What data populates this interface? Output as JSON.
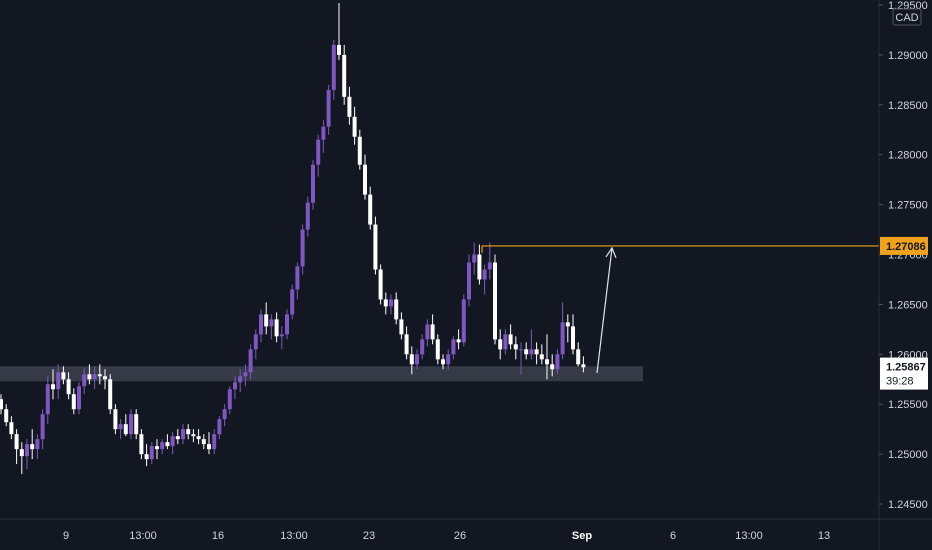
{
  "currency": "CAD",
  "colors": {
    "background": "#131722",
    "up": "#7e57c2",
    "down": "#ffffff",
    "resistance": "#f0a31a",
    "support_zone": "#3a3e4a",
    "axis_text": "#d1d4dc",
    "arrow": "#e0e3eb"
  },
  "price_label_resistance": "1.27086",
  "price_label_current": "1.25867",
  "countdown": "39:28",
  "chart_data": {
    "type": "candlestick",
    "y_ticks": [
      "1.24500",
      "1.25000",
      "1.25500",
      "1.26000",
      "1.26500",
      "1.27000",
      "1.27500",
      "1.28000",
      "1.28500",
      "1.29000",
      "1.29500"
    ],
    "x_ticks": [
      "9",
      "13:00",
      "16",
      "13:00",
      "23",
      "26",
      "Sep",
      "6",
      "13:00",
      "13"
    ],
    "ylim": [
      1.2435,
      1.2955
    ],
    "resistance_level": 1.27086,
    "current_price": 1.25867,
    "support_zone": [
      1.2573,
      1.2588
    ],
    "grid": false,
    "ohlc": [
      [
        1.2555,
        1.256,
        1.254,
        1.2545
      ],
      [
        1.2545,
        1.255,
        1.2528,
        1.2532
      ],
      [
        1.2532,
        1.2538,
        1.2515,
        1.252
      ],
      [
        1.252,
        1.2525,
        1.249,
        1.2505
      ],
      [
        1.2505,
        1.2512,
        1.248,
        1.2498
      ],
      [
        1.2498,
        1.2515,
        1.2485,
        1.251
      ],
      [
        1.251,
        1.2525,
        1.2495,
        1.2505
      ],
      [
        1.2505,
        1.252,
        1.2495,
        1.2515
      ],
      [
        1.2515,
        1.2545,
        1.2505,
        1.254
      ],
      [
        1.254,
        1.2578,
        1.253,
        1.257
      ],
      [
        1.257,
        1.2585,
        1.2555,
        1.2565
      ],
      [
        1.2565,
        1.259,
        1.2555,
        1.2582
      ],
      [
        1.2582,
        1.2588,
        1.257,
        1.2575
      ],
      [
        1.2575,
        1.2582,
        1.2555,
        1.256
      ],
      [
        1.256,
        1.2566,
        1.254,
        1.2545
      ],
      [
        1.2545,
        1.2572,
        1.254,
        1.2568
      ],
      [
        1.2568,
        1.2586,
        1.256,
        1.258
      ],
      [
        1.258,
        1.259,
        1.257,
        1.2575
      ],
      [
        1.2575,
        1.2588,
        1.2565,
        1.258
      ],
      [
        1.258,
        1.259,
        1.257,
        1.2578
      ],
      [
        1.2578,
        1.2585,
        1.2565,
        1.2575
      ],
      [
        1.2575,
        1.258,
        1.254,
        1.2545
      ],
      [
        1.2545,
        1.255,
        1.252,
        1.2525
      ],
      [
        1.2525,
        1.2535,
        1.2515,
        1.253
      ],
      [
        1.253,
        1.254,
        1.2518,
        1.252
      ],
      [
        1.252,
        1.2545,
        1.2515,
        1.254
      ],
      [
        1.254,
        1.2545,
        1.2515,
        1.252
      ],
      [
        1.252,
        1.2525,
        1.2495,
        1.25
      ],
      [
        1.25,
        1.251,
        1.2488,
        1.2495
      ],
      [
        1.2495,
        1.2512,
        1.249,
        1.2508
      ],
      [
        1.2508,
        1.2515,
        1.2495,
        1.2505
      ],
      [
        1.2505,
        1.2515,
        1.25,
        1.2512
      ],
      [
        1.2512,
        1.252,
        1.2505,
        1.2508
      ],
      [
        1.2508,
        1.2522,
        1.25,
        1.2518
      ],
      [
        1.2518,
        1.2525,
        1.251,
        1.2515
      ],
      [
        1.2515,
        1.253,
        1.251,
        1.2525
      ],
      [
        1.2525,
        1.253,
        1.2515,
        1.252
      ],
      [
        1.252,
        1.2525,
        1.2512,
        1.2518
      ],
      [
        1.2518,
        1.2525,
        1.251,
        1.2515
      ],
      [
        1.2515,
        1.252,
        1.2505,
        1.251
      ],
      [
        1.251,
        1.2522,
        1.25,
        1.2505
      ],
      [
        1.2505,
        1.2525,
        1.25,
        1.252
      ],
      [
        1.252,
        1.2538,
        1.2515,
        1.2535
      ],
      [
        1.2535,
        1.255,
        1.2528,
        1.2545
      ],
      [
        1.2545,
        1.2568,
        1.254,
        1.2565
      ],
      [
        1.2565,
        1.2578,
        1.2555,
        1.2572
      ],
      [
        1.2572,
        1.2585,
        1.2562,
        1.2578
      ],
      [
        1.2578,
        1.259,
        1.2568,
        1.2582
      ],
      [
        1.2582,
        1.261,
        1.2575,
        1.2605
      ],
      [
        1.2605,
        1.2625,
        1.2595,
        1.262
      ],
      [
        1.262,
        1.2645,
        1.2612,
        1.264
      ],
      [
        1.264,
        1.2652,
        1.262,
        1.2628
      ],
      [
        1.2628,
        1.264,
        1.2615,
        1.2635
      ],
      [
        1.2635,
        1.2642,
        1.2612,
        1.2618
      ],
      [
        1.2618,
        1.2628,
        1.2605,
        1.262
      ],
      [
        1.262,
        1.2645,
        1.2615,
        1.264
      ],
      [
        1.264,
        1.267,
        1.2635,
        1.2665
      ],
      [
        1.2665,
        1.2692,
        1.2655,
        1.2688
      ],
      [
        1.2688,
        1.273,
        1.268,
        1.2725
      ],
      [
        1.2725,
        1.2758,
        1.2718,
        1.2752
      ],
      [
        1.2752,
        1.2795,
        1.2745,
        1.279
      ],
      [
        1.279,
        1.282,
        1.2778,
        1.2815
      ],
      [
        1.2815,
        1.2835,
        1.2802,
        1.2828
      ],
      [
        1.2828,
        1.287,
        1.282,
        1.2865
      ],
      [
        1.2865,
        1.2915,
        1.2855,
        1.291
      ],
      [
        1.291,
        1.2952,
        1.2895,
        1.29
      ],
      [
        1.29,
        1.291,
        1.285,
        1.2858
      ],
      [
        1.2858,
        1.2868,
        1.283,
        1.2838
      ],
      [
        1.2838,
        1.2848,
        1.281,
        1.2818
      ],
      [
        1.2818,
        1.2825,
        1.2785,
        1.279
      ],
      [
        1.279,
        1.28,
        1.2755,
        1.276
      ],
      [
        1.276,
        1.2768,
        1.2725,
        1.273
      ],
      [
        1.273,
        1.2738,
        1.268,
        1.2685
      ],
      [
        1.2685,
        1.269,
        1.265,
        1.2655
      ],
      [
        1.2655,
        1.2662,
        1.264,
        1.2648
      ],
      [
        1.2648,
        1.266,
        1.264,
        1.2655
      ],
      [
        1.2655,
        1.2662,
        1.263,
        1.2635
      ],
      [
        1.2635,
        1.2642,
        1.2615,
        1.262
      ],
      [
        1.262,
        1.2628,
        1.2595,
        1.26
      ],
      [
        1.26,
        1.2608,
        1.258,
        1.259
      ],
      [
        1.259,
        1.2605,
        1.2585,
        1.26
      ],
      [
        1.26,
        1.262,
        1.2595,
        1.2615
      ],
      [
        1.2615,
        1.2635,
        1.2608,
        1.263
      ],
      [
        1.263,
        1.264,
        1.261,
        1.2615
      ],
      [
        1.2615,
        1.262,
        1.259,
        1.2595
      ],
      [
        1.2595,
        1.26,
        1.2585,
        1.259
      ],
      [
        1.259,
        1.2605,
        1.2585,
        1.26
      ],
      [
        1.26,
        1.2618,
        1.2595,
        1.2615
      ],
      [
        1.2615,
        1.2625,
        1.2605,
        1.2612
      ],
      [
        1.2612,
        1.266,
        1.2608,
        1.2655
      ],
      [
        1.2655,
        1.27,
        1.2648,
        1.2692
      ],
      [
        1.2692,
        1.2712,
        1.268,
        1.27
      ],
      [
        1.27,
        1.271,
        1.267,
        1.2675
      ],
      [
        1.2675,
        1.269,
        1.266,
        1.2685
      ],
      [
        1.2685,
        1.2712,
        1.2675,
        1.2692
      ],
      [
        1.2692,
        1.27,
        1.261,
        1.2615
      ],
      [
        1.2615,
        1.2625,
        1.2595,
        1.2605
      ],
      [
        1.2605,
        1.2625,
        1.26,
        1.262
      ],
      [
        1.262,
        1.263,
        1.2605,
        1.261
      ],
      [
        1.261,
        1.2618,
        1.2595,
        1.2605
      ],
      [
        1.2605,
        1.2612,
        1.258,
        1.2605
      ],
      [
        1.2605,
        1.2612,
        1.2595,
        1.26
      ],
      [
        1.26,
        1.2625,
        1.2595,
        1.2605
      ],
      [
        1.2605,
        1.2612,
        1.259,
        1.26
      ],
      [
        1.26,
        1.261,
        1.259,
        1.2595
      ],
      [
        1.2595,
        1.262,
        1.2575,
        1.259
      ],
      [
        1.259,
        1.26,
        1.2578,
        1.2585
      ],
      [
        1.2585,
        1.2605,
        1.258,
        1.26
      ],
      [
        1.26,
        1.2652,
        1.2595,
        1.2632
      ],
      [
        1.2632,
        1.264,
        1.2612,
        1.2628
      ],
      [
        1.2628,
        1.264,
        1.26,
        1.2605
      ],
      [
        1.2605,
        1.2612,
        1.2588,
        1.259
      ],
      [
        1.259,
        1.2598,
        1.2582,
        1.2587
      ]
    ]
  }
}
